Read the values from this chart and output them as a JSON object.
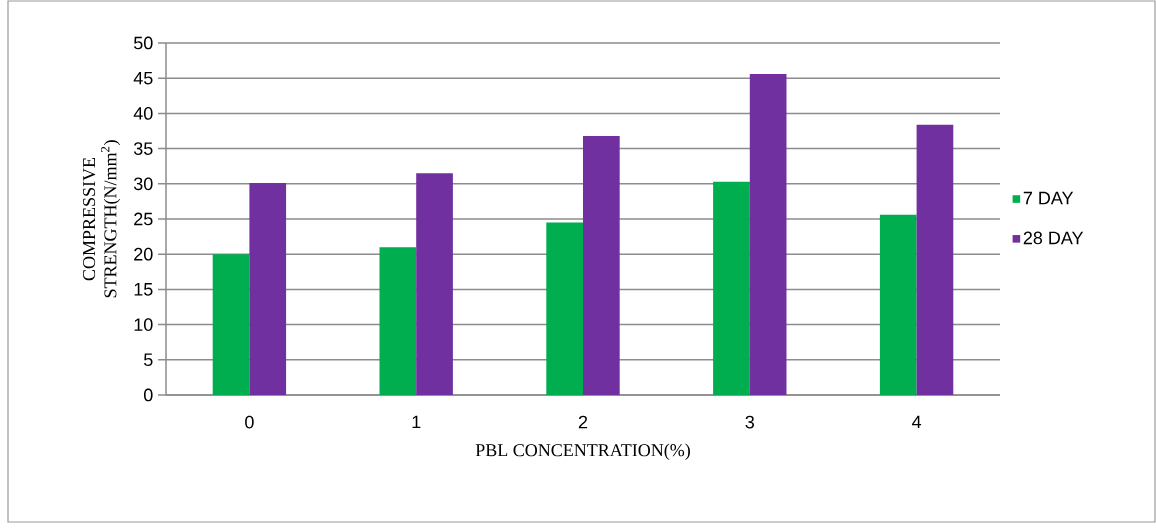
{
  "chart_data": {
    "type": "bar",
    "xlabel": "PBL CONCENTRATION(%)",
    "ylabel": "COMPRESSIVE STRENGTH(N/mm$^{2}$)",
    "categories": [
      "0",
      "1",
      "2",
      "3",
      "4"
    ],
    "series": [
      {
        "name": "7 DAY",
        "color": "#00ad4f",
        "values": [
          20,
          21,
          24.5,
          30.3,
          25.6
        ]
      },
      {
        "name": "28 DAY",
        "color": "#7030a0",
        "values": [
          30.1,
          31.5,
          36.8,
          45.6,
          38.4
        ]
      }
    ],
    "ylim": [
      0,
      50
    ],
    "yticks": [
      0,
      5,
      10,
      15,
      20,
      25,
      30,
      35,
      40,
      45,
      50
    ],
    "grid": "y",
    "legend": "right"
  }
}
